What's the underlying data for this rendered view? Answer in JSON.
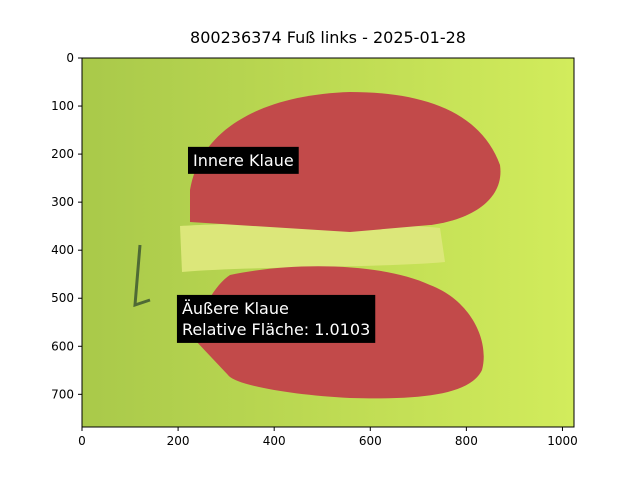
{
  "chart_data": {
    "type": "image",
    "title": "800236374 Fuß links - 2025-01-28",
    "xlim": [
      0,
      1024
    ],
    "ylim": [
      768,
      0
    ],
    "xticks": [
      0,
      200,
      400,
      600,
      800,
      1000
    ],
    "yticks": [
      0,
      100,
      200,
      300,
      400,
      500,
      600,
      700
    ],
    "annotations": [
      {
        "lines": [
          "Innere Klaue"
        ],
        "x": 231,
        "y": 212
      },
      {
        "lines": [
          "Äußere Klaue",
          "Relative Fläche: 1.0103"
        ],
        "x": 208,
        "y": 542
      }
    ]
  }
}
